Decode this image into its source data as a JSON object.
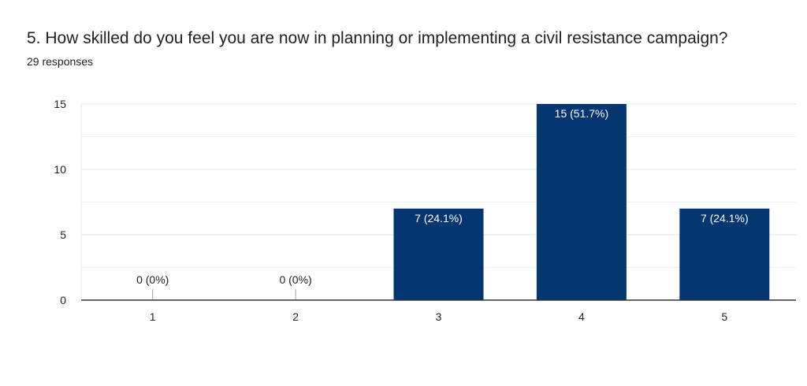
{
  "question": {
    "title": "5. How skilled do you feel you are now in planning or implementing a civil resistance campaign?",
    "responses": "29 responses"
  },
  "colors": {
    "bar": "#043672",
    "grid": "#e6e6e6",
    "axis": "#333333",
    "text": "#202124"
  },
  "chart_data": {
    "type": "bar",
    "categories": [
      "1",
      "2",
      "3",
      "4",
      "5"
    ],
    "values": [
      0,
      0,
      7,
      15,
      7
    ],
    "data_labels": [
      "0 (0%)",
      "0 (0%)",
      "7 (24.1%)",
      "15 (51.7%)",
      "7 (24.1%)"
    ],
    "ylim": [
      0,
      15
    ],
    "yticks": [
      0,
      5,
      10,
      15
    ],
    "grid": true,
    "legend": "none"
  }
}
